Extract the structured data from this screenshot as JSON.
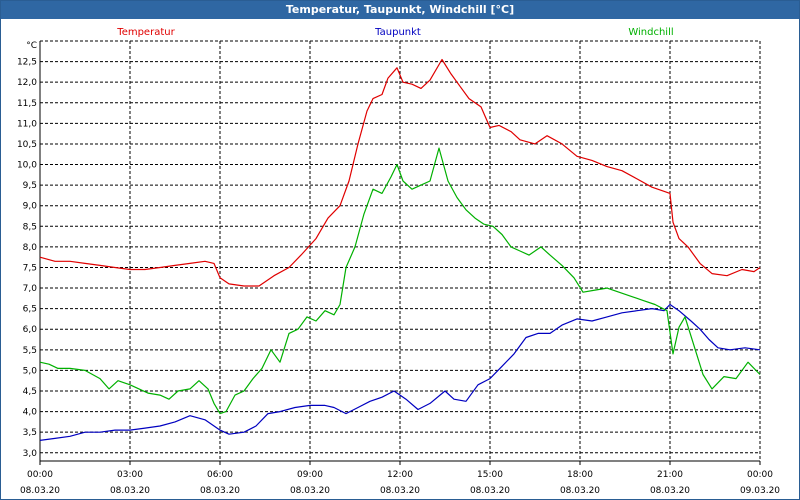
{
  "window": {
    "title": "Temperatur, Taupunkt, Windchill [°C]"
  },
  "chart_data": {
    "type": "line",
    "title": "Temperatur, Taupunkt, Windchill [°C]",
    "ylabel": "°C",
    "ylim": [
      2.8,
      13.0
    ],
    "xlim": [
      0,
      24
    ],
    "grid": true,
    "y_ticks": [
      "3,0",
      "3,5",
      "4,0",
      "4,5",
      "5,0",
      "5,5",
      "6,0",
      "6,5",
      "7,0",
      "7,5",
      "8,0",
      "8,5",
      "9,0",
      "9,5",
      "10,0",
      "10,5",
      "11,0",
      "11,5",
      "12,0",
      "12,5"
    ],
    "x_ticks": [
      {
        "x": 0,
        "time": "00:00",
        "date": "08.03.20"
      },
      {
        "x": 3,
        "time": "03:00",
        "date": "08.03.20"
      },
      {
        "x": 6,
        "time": "06:00",
        "date": "08.03.20"
      },
      {
        "x": 9,
        "time": "09:00",
        "date": "08.03.20"
      },
      {
        "x": 12,
        "time": "12:00",
        "date": "08.03.20"
      },
      {
        "x": 15,
        "time": "15:00",
        "date": "08.03.20"
      },
      {
        "x": 18,
        "time": "18:00",
        "date": "08.03.20"
      },
      {
        "x": 21,
        "time": "21:00",
        "date": "08.03.20"
      },
      {
        "x": 24,
        "time": "00:00",
        "date": "09.03.20"
      }
    ],
    "legend": "top",
    "series": [
      {
        "name": "Temperatur",
        "color": "#e00000",
        "points": [
          [
            0,
            7.75
          ],
          [
            0.5,
            7.65
          ],
          [
            1,
            7.65
          ],
          [
            1.5,
            7.6
          ],
          [
            2,
            7.55
          ],
          [
            2.5,
            7.5
          ],
          [
            3,
            7.45
          ],
          [
            3.5,
            7.45
          ],
          [
            4,
            7.5
          ],
          [
            4.5,
            7.55
          ],
          [
            5,
            7.6
          ],
          [
            5.5,
            7.65
          ],
          [
            5.8,
            7.6
          ],
          [
            6,
            7.25
          ],
          [
            6.3,
            7.1
          ],
          [
            6.8,
            7.05
          ],
          [
            7.3,
            7.05
          ],
          [
            7.8,
            7.3
          ],
          [
            8.3,
            7.5
          ],
          [
            8.7,
            7.8
          ],
          [
            9.2,
            8.2
          ],
          [
            9.6,
            8.7
          ],
          [
            10,
            9.0
          ],
          [
            10.3,
            9.6
          ],
          [
            10.6,
            10.5
          ],
          [
            10.9,
            11.3
          ],
          [
            11.1,
            11.6
          ],
          [
            11.4,
            11.7
          ],
          [
            11.6,
            12.1
          ],
          [
            11.9,
            12.35
          ],
          [
            12.1,
            12.0
          ],
          [
            12.4,
            11.95
          ],
          [
            12.7,
            11.85
          ],
          [
            13.0,
            12.05
          ],
          [
            13.4,
            12.55
          ],
          [
            13.7,
            12.2
          ],
          [
            14.0,
            11.9
          ],
          [
            14.3,
            11.6
          ],
          [
            14.7,
            11.4
          ],
          [
            15.0,
            10.9
          ],
          [
            15.3,
            10.95
          ],
          [
            15.7,
            10.8
          ],
          [
            16.0,
            10.6
          ],
          [
            16.5,
            10.5
          ],
          [
            16.9,
            10.7
          ],
          [
            17.4,
            10.5
          ],
          [
            17.9,
            10.2
          ],
          [
            18.4,
            10.1
          ],
          [
            18.9,
            9.95
          ],
          [
            19.4,
            9.85
          ],
          [
            19.9,
            9.65
          ],
          [
            20.4,
            9.45
          ],
          [
            20.8,
            9.35
          ],
          [
            21.0,
            9.3
          ],
          [
            21.1,
            8.6
          ],
          [
            21.3,
            8.2
          ],
          [
            21.6,
            8.0
          ],
          [
            22.0,
            7.6
          ],
          [
            22.4,
            7.35
          ],
          [
            22.9,
            7.3
          ],
          [
            23.4,
            7.45
          ],
          [
            23.8,
            7.4
          ],
          [
            24.0,
            7.5
          ]
        ]
      },
      {
        "name": "Taupunkt",
        "color": "#0000c0",
        "points": [
          [
            0,
            3.3
          ],
          [
            0.5,
            3.35
          ],
          [
            1,
            3.4
          ],
          [
            1.5,
            3.5
          ],
          [
            2,
            3.5
          ],
          [
            2.5,
            3.55
          ],
          [
            3,
            3.55
          ],
          [
            3.5,
            3.6
          ],
          [
            4,
            3.65
          ],
          [
            4.5,
            3.75
          ],
          [
            5,
            3.9
          ],
          [
            5.5,
            3.8
          ],
          [
            6,
            3.55
          ],
          [
            6.3,
            3.45
          ],
          [
            6.8,
            3.5
          ],
          [
            7.2,
            3.65
          ],
          [
            7.6,
            3.95
          ],
          [
            8.0,
            4.0
          ],
          [
            8.5,
            4.1
          ],
          [
            9.0,
            4.15
          ],
          [
            9.5,
            4.15
          ],
          [
            9.8,
            4.1
          ],
          [
            10.2,
            3.95
          ],
          [
            10.6,
            4.1
          ],
          [
            11.0,
            4.25
          ],
          [
            11.4,
            4.35
          ],
          [
            11.8,
            4.5
          ],
          [
            12.2,
            4.3
          ],
          [
            12.6,
            4.05
          ],
          [
            13.0,
            4.2
          ],
          [
            13.5,
            4.5
          ],
          [
            13.8,
            4.3
          ],
          [
            14.2,
            4.25
          ],
          [
            14.6,
            4.65
          ],
          [
            15.0,
            4.8
          ],
          [
            15.4,
            5.1
          ],
          [
            15.8,
            5.4
          ],
          [
            16.2,
            5.8
          ],
          [
            16.6,
            5.9
          ],
          [
            17.0,
            5.9
          ],
          [
            17.4,
            6.1
          ],
          [
            17.9,
            6.25
          ],
          [
            18.4,
            6.2
          ],
          [
            18.9,
            6.3
          ],
          [
            19.4,
            6.4
          ],
          [
            19.9,
            6.45
          ],
          [
            20.4,
            6.5
          ],
          [
            20.8,
            6.45
          ],
          [
            21.0,
            6.6
          ],
          [
            21.3,
            6.45
          ],
          [
            21.7,
            6.2
          ],
          [
            22.0,
            6.0
          ],
          [
            22.3,
            5.75
          ],
          [
            22.6,
            5.55
          ],
          [
            23.0,
            5.5
          ],
          [
            23.5,
            5.55
          ],
          [
            24.0,
            5.5
          ]
        ]
      },
      {
        "name": "Windchill",
        "color": "#00b000",
        "points": [
          [
            0,
            5.2
          ],
          [
            0.3,
            5.15
          ],
          [
            0.6,
            5.05
          ],
          [
            1,
            5.05
          ],
          [
            1.5,
            5.0
          ],
          [
            2,
            4.8
          ],
          [
            2.3,
            4.55
          ],
          [
            2.6,
            4.75
          ],
          [
            3,
            4.65
          ],
          [
            3.3,
            4.55
          ],
          [
            3.6,
            4.45
          ],
          [
            4,
            4.4
          ],
          [
            4.3,
            4.3
          ],
          [
            4.6,
            4.5
          ],
          [
            5,
            4.55
          ],
          [
            5.3,
            4.75
          ],
          [
            5.6,
            4.55
          ],
          [
            5.8,
            4.2
          ],
          [
            6.0,
            3.95
          ],
          [
            6.2,
            4.0
          ],
          [
            6.5,
            4.4
          ],
          [
            6.8,
            4.5
          ],
          [
            7.1,
            4.8
          ],
          [
            7.4,
            5.05
          ],
          [
            7.7,
            5.5
          ],
          [
            8.0,
            5.2
          ],
          [
            8.3,
            5.9
          ],
          [
            8.6,
            6.0
          ],
          [
            8.9,
            6.3
          ],
          [
            9.2,
            6.2
          ],
          [
            9.5,
            6.45
          ],
          [
            9.8,
            6.35
          ],
          [
            10.0,
            6.6
          ],
          [
            10.2,
            7.5
          ],
          [
            10.5,
            8.0
          ],
          [
            10.8,
            8.8
          ],
          [
            11.1,
            9.4
          ],
          [
            11.4,
            9.3
          ],
          [
            11.7,
            9.7
          ],
          [
            11.9,
            10.0
          ],
          [
            12.1,
            9.6
          ],
          [
            12.4,
            9.4
          ],
          [
            12.7,
            9.5
          ],
          [
            13.0,
            9.6
          ],
          [
            13.3,
            10.4
          ],
          [
            13.6,
            9.6
          ],
          [
            13.9,
            9.2
          ],
          [
            14.2,
            8.9
          ],
          [
            14.5,
            8.7
          ],
          [
            14.8,
            8.55
          ],
          [
            15.1,
            8.5
          ],
          [
            15.4,
            8.3
          ],
          [
            15.7,
            8.0
          ],
          [
            16.0,
            7.9
          ],
          [
            16.3,
            7.8
          ],
          [
            16.7,
            8.0
          ],
          [
            17.0,
            7.8
          ],
          [
            17.4,
            7.55
          ],
          [
            17.8,
            7.25
          ],
          [
            18.1,
            6.9
          ],
          [
            18.5,
            6.95
          ],
          [
            18.9,
            7.0
          ],
          [
            19.3,
            6.9
          ],
          [
            19.7,
            6.8
          ],
          [
            20.1,
            6.7
          ],
          [
            20.5,
            6.6
          ],
          [
            20.9,
            6.45
          ],
          [
            21.1,
            5.4
          ],
          [
            21.3,
            6.05
          ],
          [
            21.5,
            6.3
          ],
          [
            21.8,
            5.6
          ],
          [
            22.1,
            4.9
          ],
          [
            22.4,
            4.55
          ],
          [
            22.8,
            4.85
          ],
          [
            23.2,
            4.8
          ],
          [
            23.6,
            5.2
          ],
          [
            24.0,
            4.9
          ]
        ]
      }
    ]
  }
}
